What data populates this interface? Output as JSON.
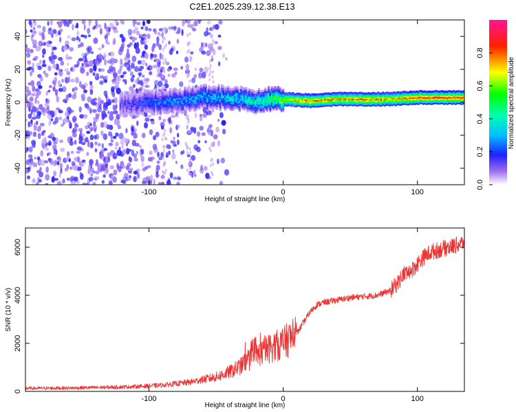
{
  "title": "C2E1.2025.239.12.38.E13",
  "chart_data": [
    {
      "type": "heatmap",
      "title": "C2E1.2025.239.12.38.E13",
      "xlabel": "Height of straight line (km)",
      "ylabel": "Frequency (Hz)",
      "xlim": [
        -192,
        135
      ],
      "ylim": [
        -50,
        50
      ],
      "xticks": [
        -100,
        0,
        100
      ],
      "yticks": [
        -40,
        -20,
        0,
        20,
        40
      ],
      "colorbar": {
        "label": "Normalized spectral amplitude",
        "range": [
          0,
          1
        ],
        "ticks": [
          0.0,
          0.2,
          0.4,
          0.6,
          0.8
        ],
        "colors": [
          "#ffffff",
          "#8a2be2",
          "#0000ff",
          "#00ffff",
          "#00ff00",
          "#ffff00",
          "#ff0000",
          "#ff1493"
        ]
      },
      "ridge": {
        "x": [
          -120,
          -100,
          -80,
          -60,
          -40,
          -20,
          0,
          20,
          40,
          60,
          80,
          100,
          135
        ],
        "freq": [
          -1,
          0,
          1,
          3,
          3,
          1,
          2,
          1,
          2,
          2,
          2,
          3,
          3
        ],
        "amplitude": [
          0.15,
          0.25,
          0.3,
          0.35,
          0.4,
          0.45,
          0.7,
          0.85,
          0.8,
          0.85,
          0.8,
          0.9,
          0.9
        ]
      }
    },
    {
      "type": "line",
      "xlabel": "Height of straight line (km)",
      "ylabel": "SNR (10 * v/v)",
      "xlim": [
        -192,
        135
      ],
      "ylim": [
        0,
        6800
      ],
      "xticks": [
        -100,
        0,
        100
      ],
      "yticks": [
        0,
        2000,
        4000,
        6000
      ],
      "series": [
        {
          "name": "SNR",
          "color": "#ee3333",
          "x": [
            -192,
            -160,
            -130,
            -110,
            -90,
            -70,
            -50,
            -40,
            -30,
            -20,
            -10,
            0,
            10,
            20,
            25,
            30,
            40,
            50,
            60,
            70,
            80,
            85,
            90,
            95,
            100,
            105,
            110,
            120,
            130,
            135
          ],
          "y": [
            130,
            140,
            170,
            200,
            260,
            380,
            600,
            800,
            1100,
            1500,
            1800,
            2000,
            2400,
            3300,
            3600,
            3700,
            3800,
            3900,
            3950,
            4000,
            4200,
            4500,
            4900,
            5000,
            5300,
            5600,
            5800,
            5950,
            6100,
            6200
          ]
        }
      ]
    }
  ]
}
